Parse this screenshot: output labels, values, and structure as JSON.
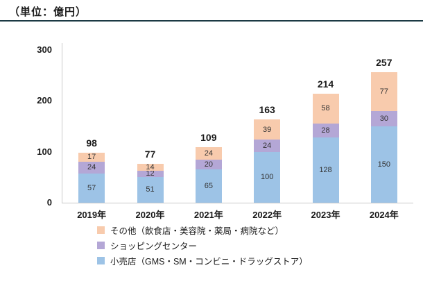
{
  "title": "（単位：億円）",
  "colors": {
    "retail": "#9DC3E6",
    "shopping_center": "#B4A7D6",
    "other": "#F8CBAD",
    "divider": "#1B3A44",
    "axis": "#C9C9C9",
    "text": "#1A1A1A"
  },
  "chart_data": {
    "type": "bar",
    "stacked": true,
    "title": "（単位：億円）",
    "categories": [
      "2019年",
      "2020年",
      "2021年",
      "2022年",
      "2023年",
      "2024年"
    ],
    "series": [
      {
        "name": "小売店（GMS・SM・コンビニ・ドラッグストア）",
        "key": "retail",
        "color_key": "retail",
        "values": [
          57,
          51,
          65,
          100,
          128,
          150
        ]
      },
      {
        "name": "ショッピングセンター",
        "key": "shopping-center",
        "color_key": "shopping_center",
        "values": [
          24,
          12,
          20,
          24,
          28,
          30
        ]
      },
      {
        "name": "その他（飲食店・美容院・薬局・病院など）",
        "key": "other",
        "color_key": "other",
        "values": [
          17,
          14,
          24,
          39,
          58,
          77
        ]
      }
    ],
    "totals": [
      98,
      77,
      109,
      163,
      214,
      257
    ],
    "yticks": [
      0,
      100,
      200,
      300
    ],
    "ylim": [
      0,
      300
    ],
    "grid": false,
    "legend_position": "bottom",
    "legend_order": [
      "その他（飲食店・美容院・薬局・病院など）",
      "ショッピングセンター",
      "小売店（GMS・SM・コンビニ・ドラッグストア）"
    ]
  }
}
